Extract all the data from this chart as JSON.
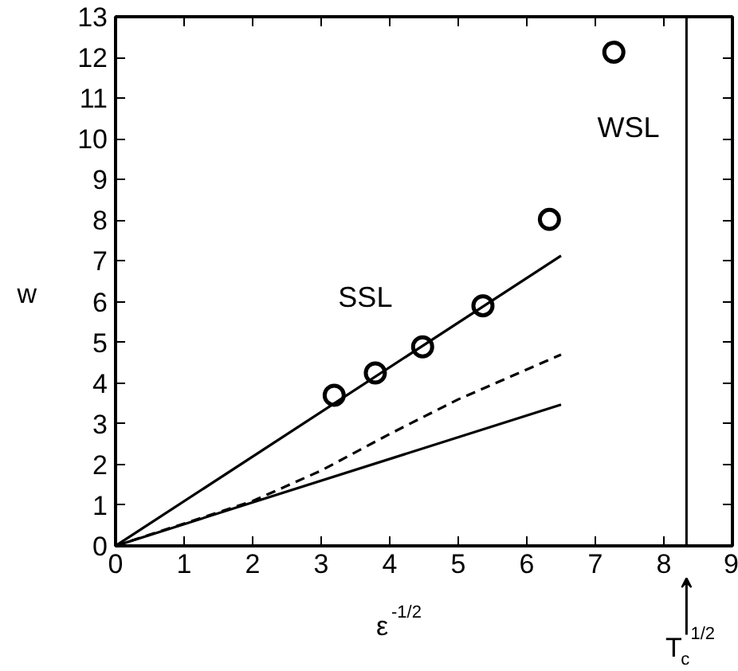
{
  "chart_data": {
    "type": "scatter",
    "xlabel": "ε$^{-1/2}$",
    "ylabel": "w",
    "xlim": [
      0,
      9
    ],
    "ylim": [
      0,
      13
    ],
    "xticks": [
      0,
      1,
      2,
      3,
      4,
      5,
      6,
      7,
      8,
      9
    ],
    "yticks": [
      0,
      1,
      2,
      3,
      4,
      5,
      6,
      7,
      8,
      9,
      10,
      11,
      12,
      13
    ],
    "grid": false,
    "series": [
      {
        "marker": "circle",
        "color": "#000000",
        "x": [
          3.19,
          3.79,
          4.48,
          5.36,
          6.33,
          7.27
        ],
        "values": [
          3.7,
          4.25,
          4.89,
          5.9,
          8.02,
          12.13
        ]
      },
      {
        "type": "line",
        "line_style": "solid",
        "color": "#000000",
        "x": [
          0,
          6.5
        ],
        "values": [
          0,
          7.13
        ]
      },
      {
        "type": "line",
        "line_style": "dashed",
        "color": "#000000",
        "x": [
          0,
          1,
          2,
          3,
          4,
          5,
          6.5
        ],
        "values": [
          0,
          0.55,
          1.1,
          1.85,
          2.75,
          3.6,
          4.7
        ]
      },
      {
        "type": "line",
        "line_style": "solid",
        "color": "#000000",
        "x": [
          0,
          6.5
        ],
        "values": [
          0,
          3.47
        ]
      }
    ],
    "ref_lines": [
      {
        "axis": "x",
        "value": 8.33,
        "label": "T$_{c}$$^{1/2}$",
        "color": "#000000",
        "line_style": "solid"
      }
    ],
    "annotations": [
      "SSL",
      "WSL"
    ]
  }
}
